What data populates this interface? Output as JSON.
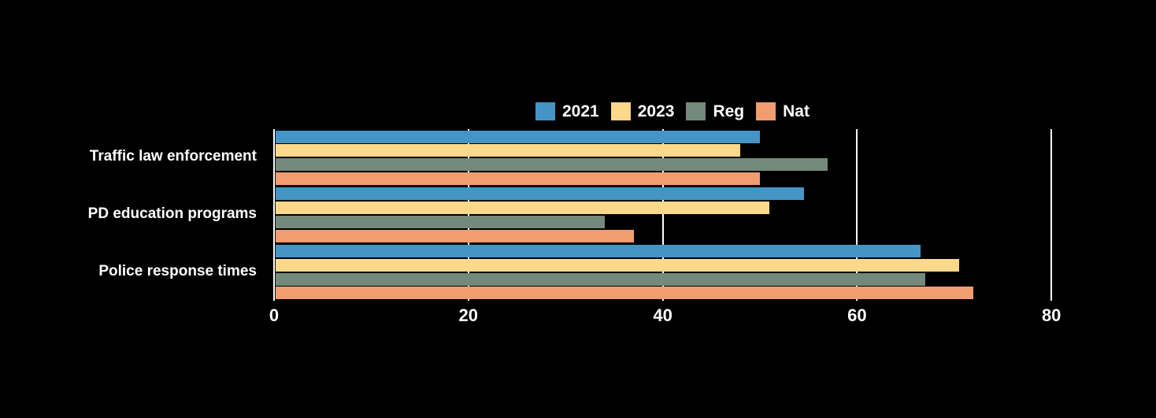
{
  "chart_data": {
    "type": "bar",
    "orientation": "horizontal",
    "title": "",
    "xlabel": "",
    "ylabel": "",
    "categories": [
      "Traffic law enforcement",
      "PD education programs",
      "Police response times"
    ],
    "series": [
      {
        "name": "2021",
        "color": "#4494c6",
        "values": [
          50,
          54.5,
          66.5
        ]
      },
      {
        "name": "2023",
        "color": "#fcd88a",
        "values": [
          48,
          51,
          70.5
        ]
      },
      {
        "name": "Reg",
        "color": "#74897a",
        "values": [
          57,
          34,
          67
        ]
      },
      {
        "name": "Nat",
        "color": "#f29d70",
        "values": [
          50,
          37,
          72
        ]
      }
    ],
    "x_ticks": [
      0,
      20,
      40,
      60,
      80
    ],
    "xlim": [
      0,
      87
    ],
    "grid": true,
    "gridline_color": "#ffffff",
    "legend_position": "top",
    "legend_labels": [
      "2021",
      "2023",
      "Reg",
      "Nat"
    ],
    "background": "#000000",
    "text_color": "#ffffff"
  }
}
